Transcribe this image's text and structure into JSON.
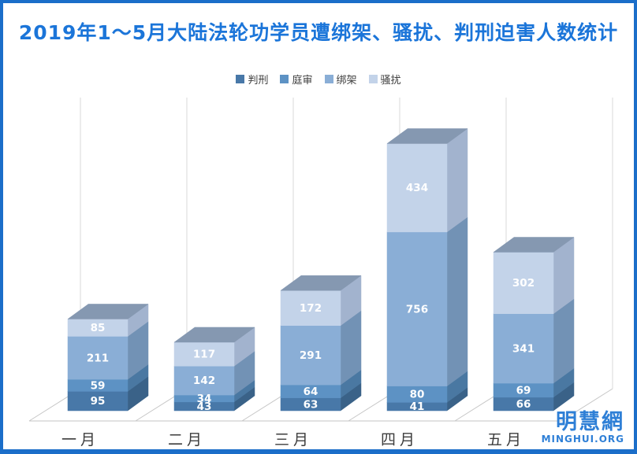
{
  "page": {
    "border_color": "#1b6ec9",
    "title_color": "#1b75d9"
  },
  "watermark": {
    "name": "明慧網",
    "site": "MINGHUI.ORG",
    "color": "#2e7fd6"
  },
  "chart_data": {
    "type": "bar",
    "subtype": "3d-stacked-column",
    "title": "2019年1～5月大陆法轮功学员遭绑架、骚扰、判刑迫害人数统计",
    "categories": [
      "一月",
      "二月",
      "三月",
      "四月",
      "五月"
    ],
    "series": [
      {
        "name": "判刑",
        "values": [
          95,
          43,
          63,
          41,
          66
        ],
        "color": "#4878a8",
        "side_color": "#3a6288"
      },
      {
        "name": "庭审",
        "values": [
          59,
          34,
          64,
          80,
          69
        ],
        "color": "#5d92c4",
        "side_color": "#4a78a2"
      },
      {
        "name": "绑架",
        "values": [
          211,
          142,
          291,
          756,
          341
        ],
        "color": "#8aaed6",
        "side_color": "#7292b5"
      },
      {
        "name": "骚扰",
        "values": [
          85,
          117,
          172,
          434,
          302
        ],
        "color": "#c3d3e9",
        "side_color": "#a2b3ce"
      }
    ],
    "top_face_color": "#8598b1",
    "value_label_color": "#ffffff",
    "axis_label_color": "#3c3c3c",
    "gridline_color": "#d8d8d8",
    "floor_line_color": "#c6c6c6",
    "legend_position": "top",
    "grid": true,
    "value_labels_shown": true,
    "ylim": [
      0,
      1560
    ]
  }
}
